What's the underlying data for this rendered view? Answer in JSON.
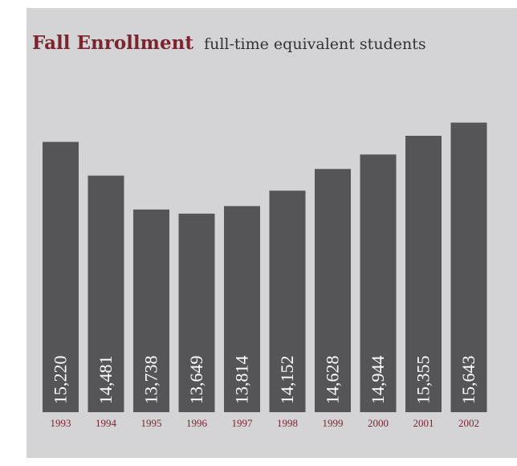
{
  "chart_data": {
    "type": "bar",
    "title": "Fall Enrollment",
    "subtitle": "full-time equivalent students",
    "categories": [
      "1993",
      "1994",
      "1995",
      "1996",
      "1997",
      "1998",
      "1999",
      "2000",
      "2001",
      "2002"
    ],
    "values": [
      15220,
      14481,
      13738,
      13649,
      13814,
      14152,
      14628,
      14944,
      15355,
      15643
    ],
    "value_labels": [
      "15,220",
      "14,481",
      "13,738",
      "13,649",
      "13,814",
      "14,152",
      "14,628",
      "14,944",
      "15,355",
      "15,643"
    ],
    "ylim": [
      9300,
      15900
    ],
    "xlabel": "",
    "ylabel": "",
    "grid": false,
    "legend": "none",
    "colors": {
      "panel": "#d4d4d6",
      "bar": "#555557",
      "title": "#7a2530",
      "subtitle": "#333333",
      "bar_label": "#ffffff",
      "tick_label": "#7a2530"
    }
  }
}
